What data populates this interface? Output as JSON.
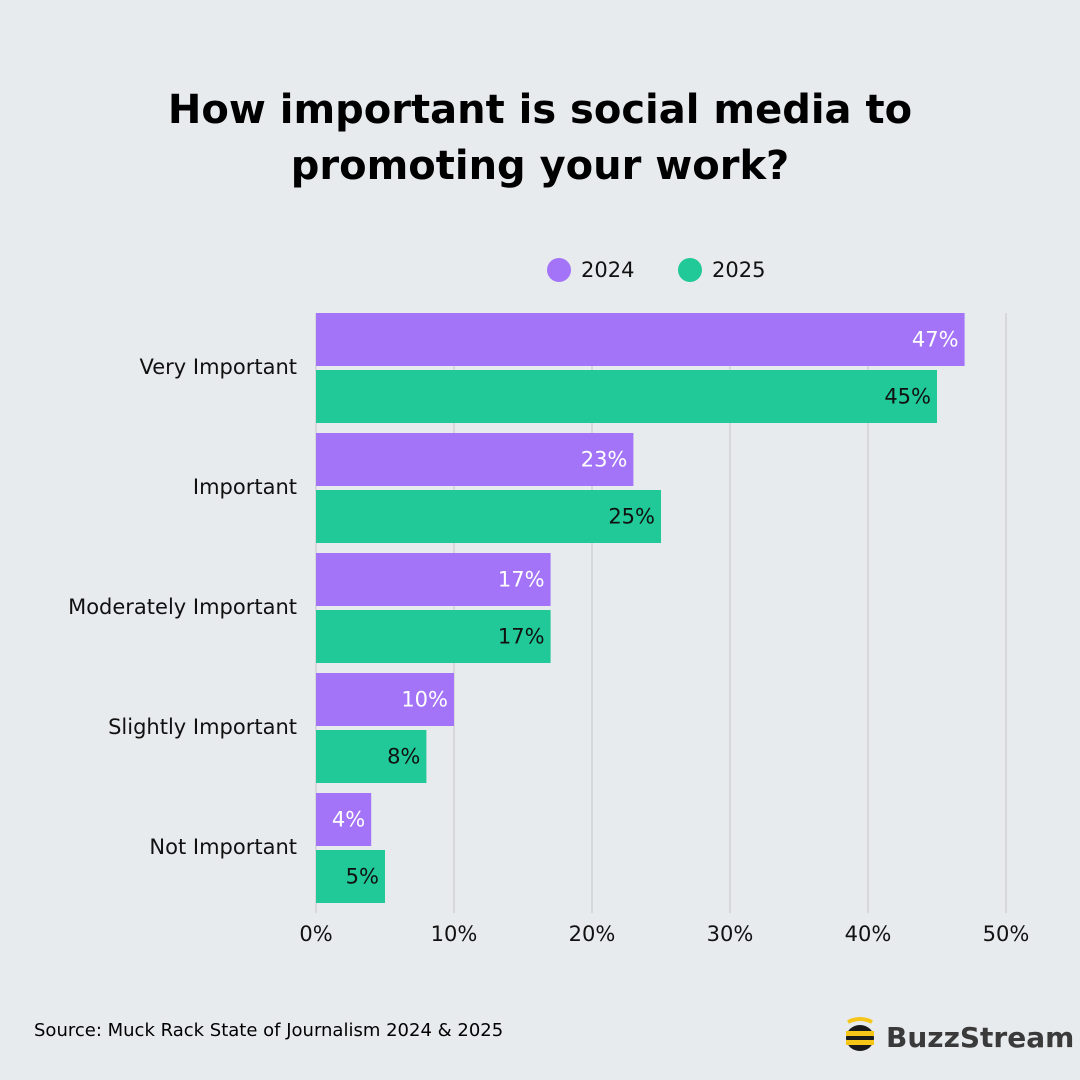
{
  "chart_data": {
    "type": "bar",
    "orientation": "horizontal",
    "title": "How important is social media to promoting your work?",
    "categories": [
      "Very Important",
      "Important",
      "Moderately Important",
      "Slightly Important",
      "Not Important"
    ],
    "series": [
      {
        "name": "2024",
        "color": "#a374f7",
        "values": [
          47,
          23,
          17,
          10,
          4
        ],
        "value_labels": [
          "47%",
          "23%",
          "17%",
          "10%",
          "4%"
        ]
      },
      {
        "name": "2025",
        "color": "#20c997",
        "values": [
          45,
          25,
          17,
          8,
          5
        ],
        "value_labels": [
          "45%",
          "25%",
          "17%",
          "8%",
          "5%"
        ]
      }
    ],
    "xlim": [
      0,
      50
    ],
    "xticks": [
      {
        "value": 0,
        "label": "0%"
      },
      {
        "value": 10,
        "label": "10%"
      },
      {
        "value": 20,
        "label": "20%"
      },
      {
        "value": 30,
        "label": "30%"
      },
      {
        "value": 40,
        "label": "40%"
      },
      {
        "value": 50,
        "label": "50%"
      }
    ],
    "grid": true,
    "legend": "top",
    "source": "Source: Muck Rack State of Journalism 2024 & 2025",
    "brand": "BuzzStream"
  }
}
